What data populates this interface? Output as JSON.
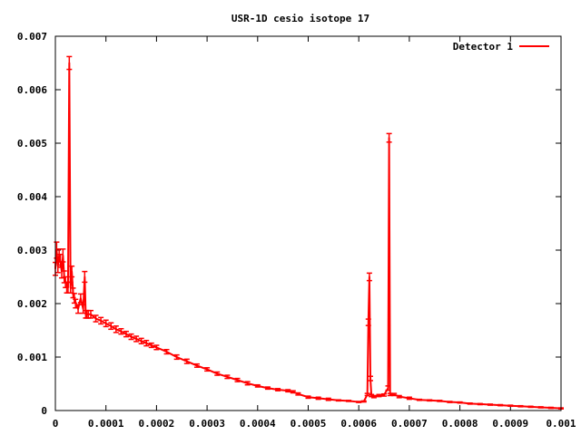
{
  "chart_data": {
    "type": "line",
    "title": "USR-1D cesio isotope 17",
    "xlabel": "",
    "ylabel": "",
    "xlim": [
      0,
      0.001
    ],
    "ylim": [
      0,
      0.007
    ],
    "grid": false,
    "legend_position": "top-right",
    "x_ticks": [
      "0",
      "0.0001",
      "0.0002",
      "0.0003",
      "0.0004",
      "0.0005",
      "0.0006",
      "0.0007",
      "0.0008",
      "0.0009",
      "0.001"
    ],
    "y_ticks": [
      "0",
      "0.001",
      "0.002",
      "0.003",
      "0.004",
      "0.005",
      "0.006",
      "0.007"
    ],
    "series": [
      {
        "name": "Detector 1",
        "color": "#ff0000",
        "error_bars": true,
        "x": [
          0.0,
          2.5e-06,
          5e-06,
          7.5e-06,
          1e-05,
          1.25e-05,
          1.5e-05,
          1.75e-05,
          2e-05,
          2.25e-05,
          2.5e-05,
          2.75e-05,
          3e-05,
          3.25e-05,
          3.5e-05,
          3.75e-05,
          4e-05,
          4.5e-05,
          5e-05,
          5.5e-05,
          5.8e-05,
          6e-05,
          6.2e-05,
          6.5e-05,
          7e-05,
          8e-05,
          9e-05,
          0.0001,
          0.00011,
          0.00012,
          0.00013,
          0.00014,
          0.00015,
          0.00016,
          0.00017,
          0.00018,
          0.00019,
          0.0002,
          0.00022,
          0.00024,
          0.00026,
          0.00028,
          0.0003,
          0.00032,
          0.00034,
          0.00036,
          0.00038,
          0.0004,
          0.00042,
          0.00044,
          0.00046,
          0.00047,
          0.00048,
          0.0005,
          0.00052,
          0.00054,
          0.00056,
          0.00058,
          0.0006,
          0.00061,
          0.000617,
          0.000619,
          0.000621,
          0.000623,
          0.000625,
          0.00063,
          0.00064,
          0.00065,
          0.000658,
          0.00066,
          0.000662,
          0.00067,
          0.00068,
          0.0007,
          0.00072,
          0.00074,
          0.00076,
          0.00078,
          0.0008,
          0.00082,
          0.00084,
          0.00086,
          0.00088,
          0.0009,
          0.00092,
          0.00094,
          0.00096,
          0.00098,
          0.001
        ],
        "y": [
          0.00265,
          0.003,
          0.0027,
          0.0029,
          0.0028,
          0.0026,
          0.0029,
          0.0025,
          0.0024,
          0.0023,
          0.0023,
          0.0065,
          0.0023,
          0.0026,
          0.0022,
          0.0021,
          0.002,
          0.0019,
          0.0021,
          0.0019,
          0.0025,
          0.0018,
          0.0018,
          0.0018,
          0.0018,
          0.00172,
          0.00168,
          0.00163,
          0.00158,
          0.00152,
          0.00148,
          0.00143,
          0.00138,
          0.00134,
          0.0013,
          0.00126,
          0.00122,
          0.00118,
          0.0011,
          0.001,
          0.00092,
          0.00084,
          0.00077,
          0.00069,
          0.00063,
          0.00057,
          0.00051,
          0.00046,
          0.00042,
          0.00039,
          0.00037,
          0.00035,
          0.00031,
          0.00025,
          0.00023,
          0.00021,
          0.00019,
          0.00018,
          0.00016,
          0.00017,
          0.0003,
          0.00165,
          0.0025,
          0.0006,
          0.00028,
          0.00026,
          0.00028,
          0.00029,
          0.00042,
          0.0051,
          0.0003,
          0.0003,
          0.00026,
          0.00023,
          0.0002,
          0.00019,
          0.00018,
          0.00016,
          0.00015,
          0.00013,
          0.00012,
          0.00011,
          0.0001,
          9e-05,
          8e-05,
          7e-05,
          6e-05,
          5e-05,
          4e-05
        ],
        "err": [
          0.00012,
          0.00015,
          0.00012,
          0.00012,
          0.00012,
          0.00012,
          0.00012,
          0.00011,
          0.0001,
          0.0001,
          0.0001,
          0.00012,
          0.0001,
          0.0001,
          9e-05,
          9e-05,
          8e-05,
          8e-05,
          8e-05,
          8e-05,
          0.0001,
          7e-05,
          7e-05,
          7e-05,
          7e-05,
          6e-05,
          6e-05,
          6e-05,
          6e-05,
          6e-05,
          5e-05,
          5e-05,
          5e-05,
          5e-05,
          5e-05,
          5e-05,
          4e-05,
          4e-05,
          4e-05,
          4e-05,
          4e-05,
          3e-05,
          3e-05,
          3e-05,
          3e-05,
          3e-05,
          3e-05,
          2e-05,
          2e-05,
          2e-05,
          2e-05,
          2e-05,
          2e-05,
          2e-05,
          2e-05,
          2e-05,
          1e-05,
          1e-05,
          1e-05,
          1e-05,
          2e-05,
          6e-05,
          7e-05,
          4e-05,
          2e-05,
          2e-05,
          2e-05,
          2e-05,
          4e-05,
          8e-05,
          2e-05,
          2e-05,
          2e-05,
          2e-05,
          1e-05,
          1e-05,
          1e-05,
          1e-05,
          1e-05,
          1e-05,
          1e-05,
          1e-05,
          1e-05,
          1e-05,
          1e-05,
          1e-05,
          1e-05,
          1e-05,
          1e-05
        ]
      }
    ]
  }
}
